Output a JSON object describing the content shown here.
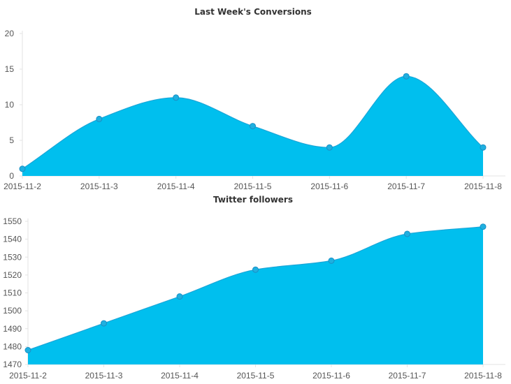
{
  "colors": {
    "area": "#00bfee",
    "line": "#1aa6d8",
    "point": "#1fb0e0",
    "point_stroke": "#1a8fc4",
    "axis": "#e3e3e3",
    "text": "#555555"
  },
  "chart_data": [
    {
      "type": "area",
      "title": "Last Week's Conversions",
      "categories": [
        "2015-11-2",
        "2015-11-3",
        "2015-11-4",
        "2015-11-5",
        "2015-11-6",
        "2015-11-7",
        "2015-11-8"
      ],
      "series": [
        {
          "values": [
            1,
            8,
            11,
            7,
            4,
            14,
            4
          ]
        }
      ],
      "ylim": [
        0,
        20
      ],
      "yticks": [
        "0",
        "5",
        "10",
        "15",
        "20"
      ],
      "grid": false
    },
    {
      "type": "area",
      "title": "Twitter followers",
      "categories": [
        "2015-11-2",
        "2015-11-3",
        "2015-11-4",
        "2015-11-5",
        "2015-11-6",
        "2015-11-7",
        "2015-11-8"
      ],
      "series": [
        {
          "values": [
            1478,
            1493,
            1508,
            1523,
            1528,
            1543,
            1547
          ]
        }
      ],
      "ylim": [
        1470,
        1550
      ],
      "yticks": [
        "1470",
        "1480",
        "1490",
        "1500",
        "1510",
        "1520",
        "1530",
        "1540",
        "1550"
      ],
      "grid": false
    }
  ]
}
